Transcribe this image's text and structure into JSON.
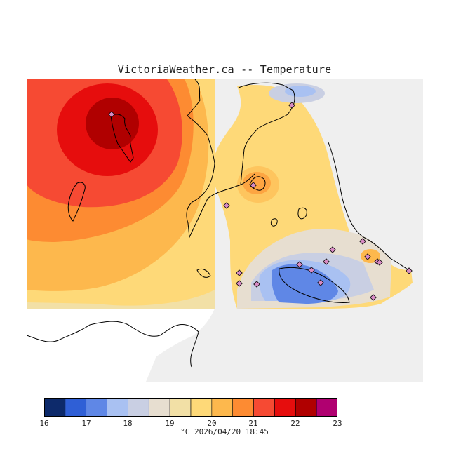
{
  "title": "VictoriaWeather.ca -- Temperature",
  "units": "°C",
  "timestamp": "2026/04/20 18:45",
  "legend": {
    "ticks": [
      "16",
      "17",
      "18",
      "19",
      "20",
      "21",
      "22",
      "23"
    ],
    "bins": [
      {
        "from": 16.0,
        "to": 16.5,
        "color": "#0d2a6b"
      },
      {
        "from": 16.5,
        "to": 17.0,
        "color": "#2f5fd6"
      },
      {
        "from": 17.0,
        "to": 17.5,
        "color": "#5f87e6"
      },
      {
        "from": 17.5,
        "to": 18.0,
        "color": "#a9c1f2"
      },
      {
        "from": 18.0,
        "to": 18.5,
        "color": "#c9cfe3"
      },
      {
        "from": 18.5,
        "to": 19.0,
        "color": "#e7ded0"
      },
      {
        "from": 19.0,
        "to": 19.5,
        "color": "#f2e0a6"
      },
      {
        "from": 19.5,
        "to": 20.0,
        "color": "#fed978"
      },
      {
        "from": 20.0,
        "to": 20.5,
        "color": "#fdb84d"
      },
      {
        "from": 20.5,
        "to": 21.0,
        "color": "#fd8b32"
      },
      {
        "from": 21.0,
        "to": 21.5,
        "color": "#f64a33"
      },
      {
        "from": 21.5,
        "to": 22.0,
        "color": "#e60d0d"
      },
      {
        "from": 22.0,
        "to": 22.5,
        "color": "#b00000"
      },
      {
        "from": 22.5,
        "to": 23.0,
        "color": "#b00070"
      }
    ]
  },
  "map_colors": {
    "background": "#efefef",
    "land_uncovered": "#ffffff",
    "coastline": "#000000",
    "station_fill": "#d88bc4"
  }
}
